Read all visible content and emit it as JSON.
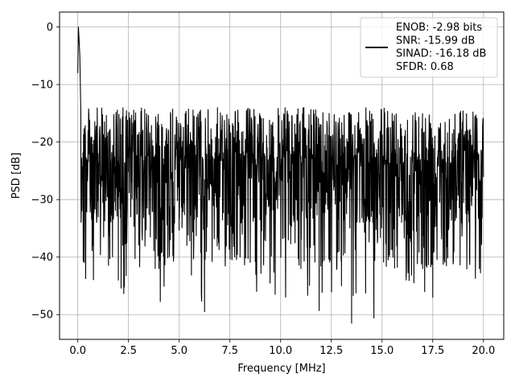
{
  "chart_data": {
    "type": "line",
    "xlabel": "Frequency [MHz]",
    "ylabel": "PSD [dB]",
    "xlim": [
      -0.9,
      21.0
    ],
    "ylim": [
      -54.3,
      2.6
    ],
    "xticks": [
      0.0,
      2.5,
      5.0,
      7.5,
      10.0,
      12.5,
      15.0,
      17.5,
      20.0
    ],
    "xtick_labels": [
      "0.0",
      "2.5",
      "5.0",
      "7.5",
      "10.0",
      "12.5",
      "15.0",
      "17.5",
      "20.0"
    ],
    "yticks": [
      0,
      -10,
      -20,
      -30,
      -40,
      -50
    ],
    "ytick_labels": [
      "0",
      "−10",
      "−20",
      "−30",
      "−40",
      "−50"
    ],
    "grid": true,
    "legend_position": "top-right",
    "series": [
      {
        "name": "ENOB: -2.98 bits\nSNR: -15.99 dB\nSINAD: -16.18 dB\nSFDR: 0.68",
        "legend_lines": [
          "ENOB: -2.98 bits",
          "SNR: -15.99 dB",
          "SINAD: -16.18 dB",
          "SFDR: 0.68"
        ],
        "color": "#000000",
        "description": "dense noise floor: peak at DC (0 dB), mostly between -12 and -36 dB with dips to about -51 dB",
        "x": [
          0.0,
          0.03,
          0.06,
          0.1,
          0.15,
          0.25,
          0.5,
          0.75,
          1.0,
          1.5,
          2.0,
          2.5,
          3.0,
          4.0,
          5.0,
          6.0,
          6.25,
          7.0,
          7.5,
          8.0,
          9.0,
          10.0,
          11.0,
          11.9,
          12.5,
          13.0,
          13.5,
          14.0,
          14.6,
          15.0,
          16.0,
          17.0,
          17.5,
          18.0,
          19.0,
          19.8,
          20.0
        ],
        "y": [
          -8.0,
          0.0,
          -2.0,
          -5.0,
          -15.0,
          -25.0,
          -20.0,
          -38.0,
          -22.0,
          -26.0,
          -44.0,
          -21.0,
          -24.0,
          -42.0,
          -23.0,
          -26.0,
          -49.5,
          -22.0,
          -25.0,
          -40.0,
          -23.0,
          -24.0,
          -42.0,
          -49.3,
          -24.0,
          -45.0,
          -51.5,
          -22.0,
          -50.6,
          -24.0,
          -26.0,
          -42.0,
          -47.0,
          -23.0,
          -25.0,
          -42.0,
          -26.0
        ]
      }
    ]
  }
}
